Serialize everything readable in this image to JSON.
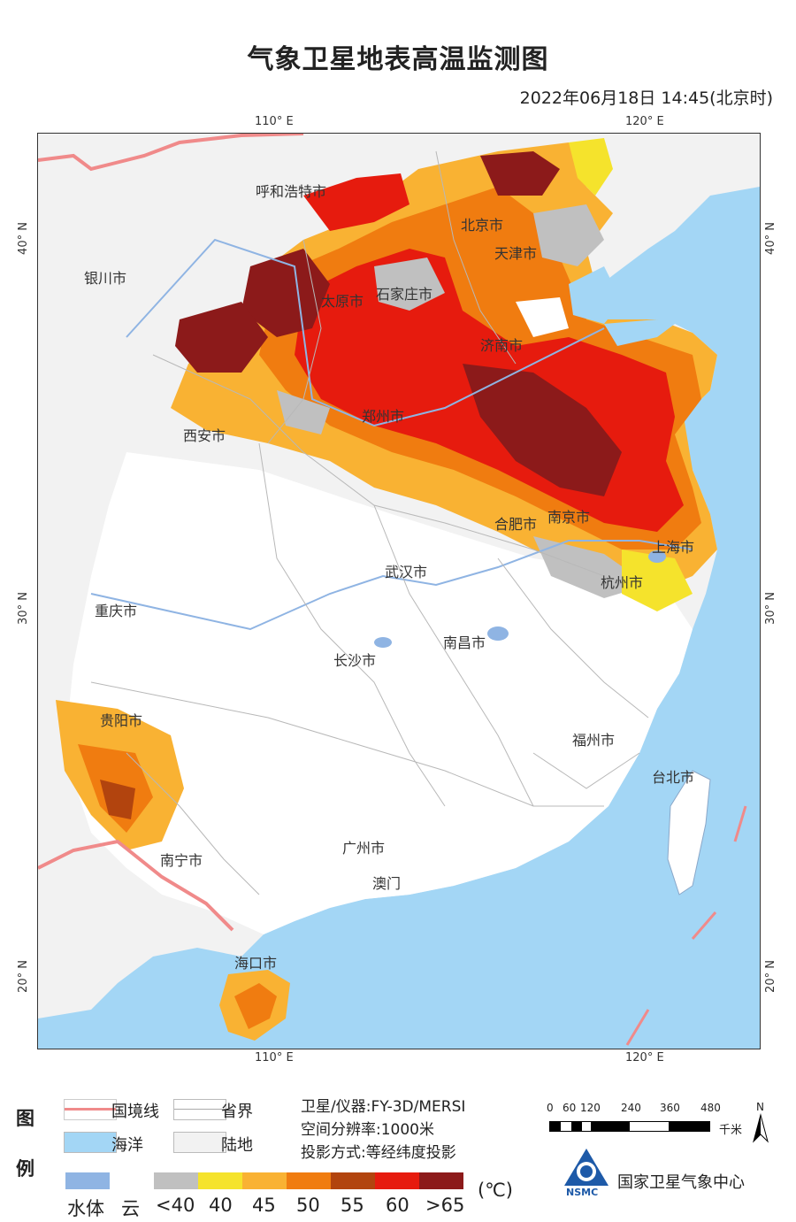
{
  "title": "气象卫星地表高温监测图",
  "datetime": "2022年06月18日 14:45(北京时)",
  "grid": {
    "lon_top": [
      "110° E",
      "120° E"
    ],
    "lon_bottom": [
      "110° E",
      "120° E"
    ],
    "lat_left": [
      "40° N",
      "30° N",
      "20° N"
    ],
    "lat_right": [
      "40° N",
      "30° N",
      "20° N"
    ]
  },
  "cities": [
    "呼和浩特市",
    "北京市",
    "天津市",
    "银川市",
    "太原市",
    "石家庄市",
    "济南市",
    "郑州市",
    "西安市",
    "合肥市",
    "南京市",
    "上海市",
    "武汉市",
    "杭州市",
    "重庆市",
    "南昌市",
    "长沙市",
    "贵阳市",
    "福州市",
    "台北市",
    "南宁市",
    "广州市",
    "澳门",
    "海口市"
  ],
  "legend": {
    "heading": "图例",
    "border_label": "国境线",
    "province_label": "省界",
    "ocean_label": "海洋",
    "land_label": "陆地",
    "water_cloud_labels": [
      "水体",
      "云"
    ],
    "temp_labels": [
      "<40",
      "40",
      "45",
      "50",
      "55",
      "60",
      ">65"
    ],
    "unit": "(℃)"
  },
  "colors": {
    "ocean": "#a3d6f5",
    "land": "#f2f2f2",
    "water_body": "#8fb4e3",
    "border": "#f08a8a",
    "categories": [
      "#c0c0c0",
      "#f5e32c",
      "#f9b233",
      "#f07c10",
      "#b2440e",
      "#e61b0e",
      "#8c1a1a"
    ]
  },
  "info": {
    "satellite": "卫星/仪器:FY-3D/MERSI",
    "resolution": "空间分辨率:1000米",
    "projection": "投影方式:等经纬度投影"
  },
  "scale_bar": {
    "ticks": [
      "0",
      "60",
      "120",
      "240",
      "360",
      "480"
    ],
    "unit": "千米",
    "north": "N"
  },
  "org": {
    "name": "国家卫星气象中心",
    "abbr": "NSMC"
  }
}
